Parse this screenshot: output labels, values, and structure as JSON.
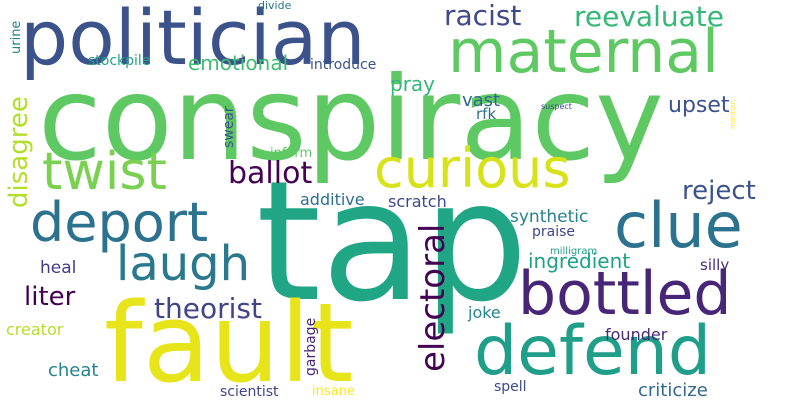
{
  "words": [
    {
      "text": "conspiracy",
      "color": "#5ec962"
    },
    {
      "text": "tap",
      "color": "#21a685"
    },
    {
      "text": "politician",
      "color": "#3b528b"
    },
    {
      "text": "maternal",
      "color": "#5ec962"
    },
    {
      "text": "fault",
      "color": "#e7e419"
    },
    {
      "text": "defend",
      "color": "#1f9e89"
    },
    {
      "text": "bottled",
      "color": "#482677"
    },
    {
      "text": "clue",
      "color": "#2c728e"
    },
    {
      "text": "curious",
      "color": "#d8e219"
    },
    {
      "text": "deport",
      "color": "#2c728e"
    },
    {
      "text": "twist",
      "color": "#7ad151"
    },
    {
      "text": "laugh",
      "color": "#2a788e"
    },
    {
      "text": "electoral",
      "color": "#440154"
    },
    {
      "text": "disagree",
      "color": "#b5de2b"
    },
    {
      "text": "theorist",
      "color": "#414487"
    },
    {
      "text": "racist",
      "color": "#3e4a89"
    },
    {
      "text": "reevaluate",
      "color": "#35b779"
    },
    {
      "text": "ballot",
      "color": "#440154"
    },
    {
      "text": "reject",
      "color": "#3b528b"
    },
    {
      "text": "liter",
      "color": "#440154"
    },
    {
      "text": "emotional",
      "color": "#3dbc74"
    },
    {
      "text": "pray",
      "color": "#35b779"
    },
    {
      "text": "upset",
      "color": "#3b528b"
    },
    {
      "text": "ingredient",
      "color": "#1fa187"
    },
    {
      "text": "vast",
      "color": "#31688e"
    },
    {
      "text": "heal",
      "color": "#443983"
    },
    {
      "text": "cheat",
      "color": "#25848e"
    },
    {
      "text": "synthetic",
      "color": "#26828e"
    },
    {
      "text": "criticize",
      "color": "#31688e"
    },
    {
      "text": "scratch",
      "color": "#3e4989"
    },
    {
      "text": "additive",
      "color": "#2e6e8e"
    },
    {
      "text": "founder",
      "color": "#482878"
    },
    {
      "text": "joke",
      "color": "#25848e"
    },
    {
      "text": "creator",
      "color": "#b5de2b"
    },
    {
      "text": "silly",
      "color": "#472d7b"
    },
    {
      "text": "praise",
      "color": "#404688"
    },
    {
      "text": "stockpile",
      "color": "#20a386"
    },
    {
      "text": "introduce",
      "color": "#3b528b"
    },
    {
      "text": "inform",
      "color": "#5ec962"
    },
    {
      "text": "garbage",
      "color": "#482475"
    },
    {
      "text": "swear",
      "color": "#3b528b"
    },
    {
      "text": "scientist",
      "color": "#414487"
    },
    {
      "text": "spell",
      "color": "#3e4a89"
    },
    {
      "text": "rfk",
      "color": "#2c728e"
    },
    {
      "text": "urine",
      "color": "#287c8e"
    },
    {
      "text": "insane",
      "color": "#fde725"
    },
    {
      "text": "divide",
      "color": "#2c728e"
    },
    {
      "text": "milligram",
      "color": "#1f9e89"
    },
    {
      "text": "suspect",
      "color": "#3e4989"
    },
    {
      "text": "mention",
      "color": "#fde725"
    }
  ]
}
